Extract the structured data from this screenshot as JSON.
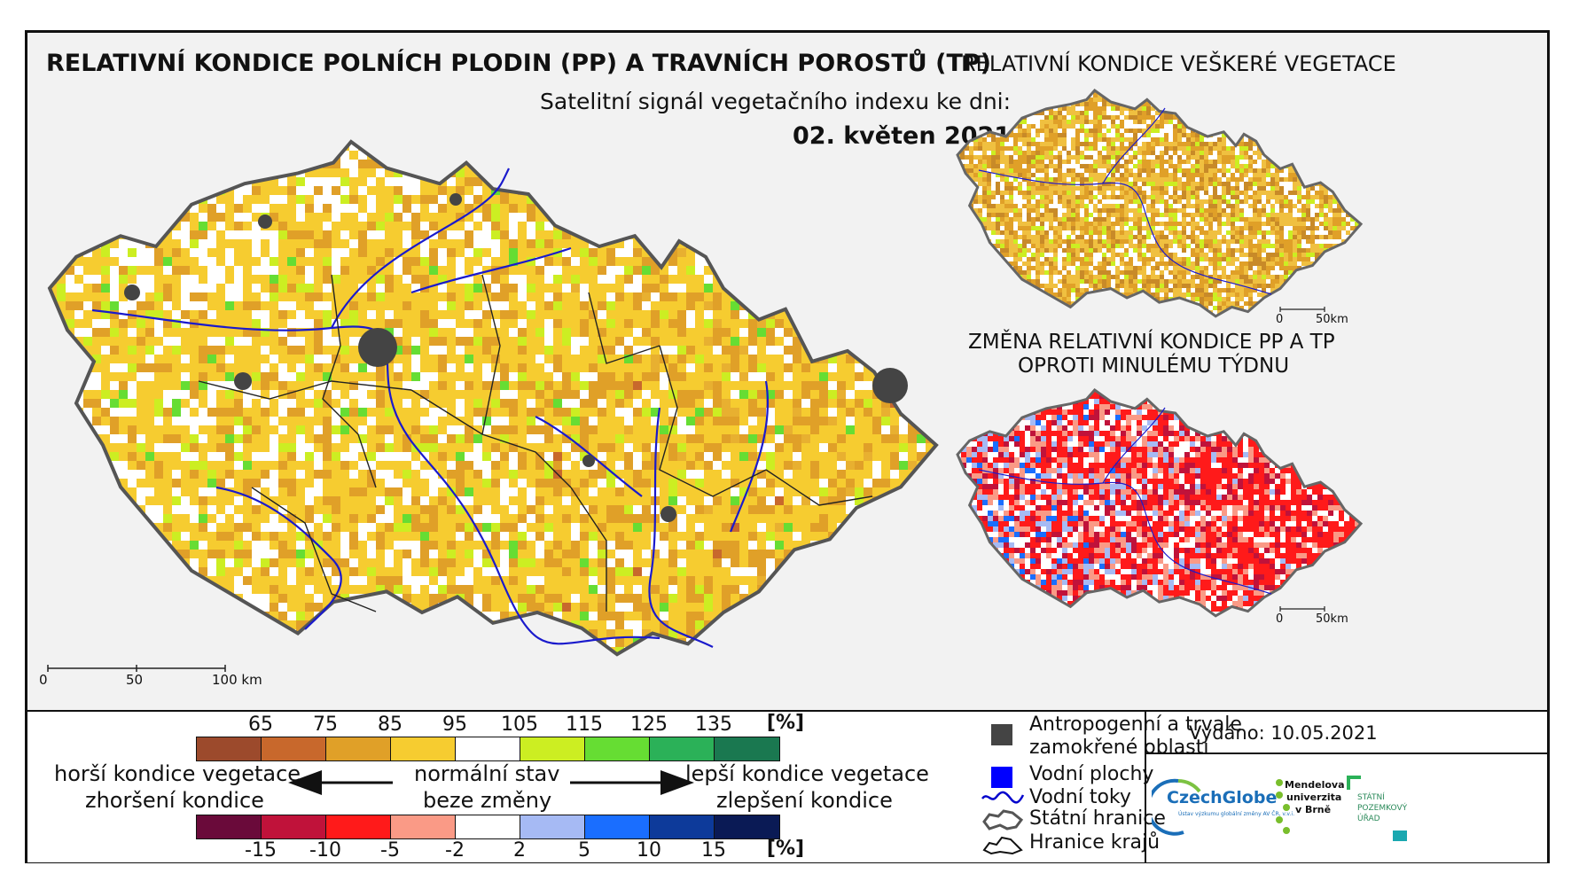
{
  "main_title": "RELATIVNÍ KONDICE POLNÍCH PLODIN (PP) A TRAVNÍCH POROSTŮ (TP)",
  "subtitle": "Satelitní signál vegetačního indexu ke dni:",
  "date": "02. květen 2021",
  "inset_top_title": "RELATIVNÍ KONDICE VEŠKERÉ VEGETACE",
  "inset_bottom_title_line1": "ZMĚNA RELATIVNÍ KONDICE PP A TP",
  "inset_bottom_title_line2": "OPROTI MINULÉMU TÝDNU",
  "main_scalebar": {
    "labels": [
      "0",
      "50",
      "100 km"
    ]
  },
  "inset_scalebar": {
    "labels": [
      "0",
      "50km"
    ]
  },
  "condition_scale": {
    "ticks": [
      "65",
      "75",
      "85",
      "95",
      "105",
      "115",
      "125",
      "135"
    ],
    "unit": "[%]",
    "colors": [
      "#9c4a2c",
      "#c8682c",
      "#e0a028",
      "#f6cc30",
      "#ffffff",
      "#ccee22",
      "#66dd33",
      "#2bb158",
      "#1a7850"
    ]
  },
  "change_scale": {
    "ticks": [
      "-15",
      "-10",
      "-5",
      "-2",
      "2",
      "5",
      "10",
      "15"
    ],
    "unit": "[%]",
    "colors": [
      "#6a0a3a",
      "#c0123a",
      "#ff1a1a",
      "#fa9a86",
      "#ffffff",
      "#a6baf4",
      "#1a6eff",
      "#0d3a9a",
      "#0a1a55"
    ]
  },
  "arrow_labels": {
    "left_line1": "horší kondice vegetace",
    "left_line2": "zhoršení kondice",
    "center_line1": "normální stav",
    "center_line2": "beze změny",
    "right_line1": "lepší kondice vegetace",
    "right_line2": "zlepšení kondice"
  },
  "layer_legend": {
    "items": [
      {
        "label": "Antropogenní a trvale zamokřené oblasti",
        "line1": "Antropogenní a trvale",
        "line2": "zamokřené oblasti",
        "color": "#444444"
      },
      {
        "label": "Vodní plochy",
        "color": "#0000ff"
      },
      {
        "label": "Vodní toky",
        "color": "#0000cc"
      },
      {
        "label": "Státní hranice",
        "color": "#666666"
      },
      {
        "label": "Hranice krajů",
        "color": "#111111"
      }
    ]
  },
  "issued": "Vydáno: 10.05.2021",
  "logos": {
    "czechglobe": "CzechGlobe",
    "czechglobe_sub": "Ústav výzkumu globální změny AV ČR, v.v.i.",
    "mendelu_line1": "Mendelova",
    "mendelu_line2": "univerzita",
    "mendelu_line3": "v Brně",
    "spu_line1": "STÁTNÍ",
    "spu_line2": "POZEMKOVÝ",
    "spu_line3": "ÚŘAD"
  }
}
